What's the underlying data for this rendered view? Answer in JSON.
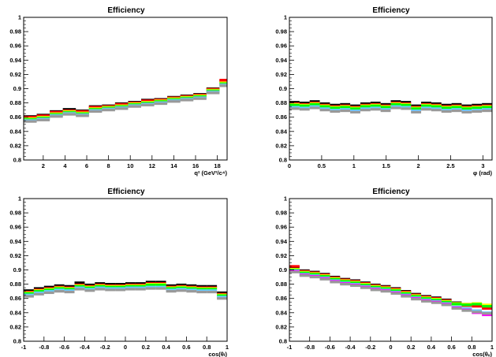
{
  "chart_data": [
    {
      "type": "line",
      "title": "Efficiency",
      "xlabel": "q² (GeV²/c⁴)",
      "ylabel": "",
      "xlim": [
        0.2,
        18.9
      ],
      "ylim": [
        0.8,
        1.0
      ],
      "x_ticks": [
        "2",
        "4",
        "6",
        "8",
        "10",
        "12",
        "14",
        "16",
        "18"
      ],
      "x_tick_values": [
        2,
        4,
        6,
        8,
        10,
        12,
        14,
        16,
        18
      ],
      "y_ticks": [
        "0.8",
        "0.82",
        "0.84",
        "0.86",
        "0.88",
        "0.9",
        "0.92",
        "0.94",
        "0.96",
        "0.98",
        "1"
      ],
      "grid": false,
      "bin_edges": [
        0.2,
        1.4,
        2.6,
        3.8,
        5.0,
        6.2,
        7.4,
        8.6,
        9.8,
        11.0,
        12.2,
        13.4,
        14.6,
        15.8,
        17.0,
        18.2,
        18.9
      ],
      "series": [
        {
          "color": "#000000",
          "values": [
            0.861,
            0.863,
            0.868,
            0.871,
            0.869,
            0.875,
            0.876,
            0.879,
            0.881,
            0.884,
            0.885,
            0.888,
            0.89,
            0.892,
            0.9,
            0.911
          ]
        },
        {
          "color": "#ff9900",
          "values": [
            0.859,
            0.861,
            0.866,
            0.869,
            0.867,
            0.873,
            0.875,
            0.877,
            0.88,
            0.882,
            0.884,
            0.887,
            0.889,
            0.891,
            0.899,
            0.91
          ]
        },
        {
          "color": "#ff0000",
          "values": [
            0.86,
            0.862,
            0.867,
            0.869,
            0.868,
            0.874,
            0.875,
            0.878,
            0.88,
            0.883,
            0.884,
            0.887,
            0.889,
            0.891,
            0.899,
            0.912
          ]
        },
        {
          "color": "#ffff00",
          "values": [
            0.858,
            0.86,
            0.865,
            0.868,
            0.866,
            0.872,
            0.874,
            0.876,
            0.879,
            0.881,
            0.883,
            0.886,
            0.888,
            0.89,
            0.898,
            0.908
          ]
        },
        {
          "color": "#00ff00",
          "values": [
            0.857,
            0.859,
            0.864,
            0.867,
            0.865,
            0.871,
            0.873,
            0.875,
            0.878,
            0.88,
            0.882,
            0.885,
            0.887,
            0.889,
            0.897,
            0.907
          ]
        },
        {
          "color": "#66cc66",
          "values": [
            0.856,
            0.858,
            0.863,
            0.866,
            0.864,
            0.87,
            0.872,
            0.874,
            0.877,
            0.879,
            0.881,
            0.884,
            0.886,
            0.888,
            0.896,
            0.906
          ]
        },
        {
          "color": "#66ccff",
          "values": [
            0.855,
            0.857,
            0.862,
            0.865,
            0.863,
            0.869,
            0.871,
            0.873,
            0.876,
            0.878,
            0.88,
            0.883,
            0.885,
            0.887,
            0.895,
            0.905
          ]
        },
        {
          "color": "#999999",
          "values": [
            0.854,
            0.856,
            0.861,
            0.864,
            0.862,
            0.868,
            0.87,
            0.872,
            0.875,
            0.877,
            0.879,
            0.882,
            0.884,
            0.886,
            0.894,
            0.904
          ]
        }
      ]
    },
    {
      "type": "line",
      "title": "Efficiency",
      "xlabel": "φ (rad)",
      "ylabel": "",
      "xlim": [
        0,
        3.1416
      ],
      "ylim": [
        0.8,
        1.0
      ],
      "x_ticks": [
        "0",
        "0.5",
        "1",
        "1.5",
        "2",
        "2.5",
        "3"
      ],
      "x_tick_values": [
        0,
        0.5,
        1,
        1.5,
        2,
        2.5,
        3
      ],
      "y_ticks": [
        "0.8",
        "0.82",
        "0.84",
        "0.86",
        "0.88",
        "0.9",
        "0.92",
        "0.94",
        "0.96",
        "0.98",
        "1"
      ],
      "grid": false,
      "bin_edges": [
        0,
        0.1571,
        0.3142,
        0.4712,
        0.6283,
        0.7854,
        0.9425,
        1.0996,
        1.2566,
        1.4137,
        1.5708,
        1.7279,
        1.885,
        2.042,
        2.1991,
        2.3562,
        2.5133,
        2.6704,
        2.8274,
        2.9845,
        3.1416
      ],
      "series": [
        {
          "color": "#000000",
          "values": [
            0.881,
            0.88,
            0.882,
            0.879,
            0.877,
            0.878,
            0.876,
            0.879,
            0.88,
            0.878,
            0.882,
            0.881,
            0.876,
            0.88,
            0.879,
            0.877,
            0.878,
            0.876,
            0.877,
            0.878
          ]
        },
        {
          "color": "#ff0000",
          "values": [
            0.879,
            0.878,
            0.88,
            0.877,
            0.875,
            0.876,
            0.874,
            0.877,
            0.878,
            0.876,
            0.88,
            0.879,
            0.874,
            0.878,
            0.877,
            0.875,
            0.876,
            0.874,
            0.875,
            0.876
          ]
        },
        {
          "color": "#ffff00",
          "values": [
            0.878,
            0.877,
            0.879,
            0.876,
            0.874,
            0.875,
            0.873,
            0.876,
            0.877,
            0.875,
            0.879,
            0.878,
            0.873,
            0.877,
            0.876,
            0.874,
            0.875,
            0.873,
            0.874,
            0.875
          ]
        },
        {
          "color": "#00ff00",
          "values": [
            0.877,
            0.876,
            0.878,
            0.875,
            0.873,
            0.874,
            0.872,
            0.875,
            0.876,
            0.874,
            0.878,
            0.877,
            0.872,
            0.876,
            0.875,
            0.873,
            0.874,
            0.872,
            0.873,
            0.874
          ]
        },
        {
          "color": "#66ccff",
          "values": [
            0.874,
            0.873,
            0.875,
            0.872,
            0.87,
            0.871,
            0.869,
            0.872,
            0.873,
            0.871,
            0.875,
            0.874,
            0.869,
            0.873,
            0.872,
            0.87,
            0.871,
            0.869,
            0.87,
            0.871
          ]
        },
        {
          "color": "#999999",
          "values": [
            0.872,
            0.871,
            0.873,
            0.87,
            0.868,
            0.869,
            0.867,
            0.87,
            0.871,
            0.869,
            0.873,
            0.872,
            0.867,
            0.871,
            0.87,
            0.868,
            0.869,
            0.867,
            0.868,
            0.869
          ]
        }
      ]
    },
    {
      "type": "line",
      "title": "Efficiency",
      "xlabel": "cos(θₗ)",
      "ylabel": "",
      "xlim": [
        -1,
        1
      ],
      "ylim": [
        0.8,
        1.0
      ],
      "x_ticks": [
        "-1",
        "-0.8",
        "-0.6",
        "-0.4",
        "-0.2",
        "0",
        "0.2",
        "0.4",
        "0.6",
        "0.8",
        "1"
      ],
      "x_tick_values": [
        -1,
        -0.8,
        -0.6,
        -0.4,
        -0.2,
        0,
        0.2,
        0.4,
        0.6,
        0.8,
        1
      ],
      "y_ticks": [
        "0.8",
        "0.82",
        "0.84",
        "0.86",
        "0.88",
        "0.9",
        "0.92",
        "0.94",
        "0.96",
        "0.98",
        "1"
      ],
      "grid": false,
      "bin_edges": [
        -1,
        -0.9,
        -0.8,
        -0.7,
        -0.6,
        -0.5,
        -0.4,
        -0.3,
        -0.2,
        -0.1,
        0,
        0.1,
        0.2,
        0.3,
        0.4,
        0.5,
        0.6,
        0.7,
        0.8,
        0.9,
        1
      ],
      "series": [
        {
          "color": "#000000",
          "values": [
            0.871,
            0.874,
            0.876,
            0.878,
            0.877,
            0.882,
            0.879,
            0.881,
            0.88,
            0.88,
            0.881,
            0.881,
            0.883,
            0.883,
            0.878,
            0.879,
            0.878,
            0.877,
            0.877,
            0.868
          ]
        },
        {
          "color": "#ff0000",
          "values": [
            0.869,
            0.872,
            0.874,
            0.876,
            0.875,
            0.879,
            0.877,
            0.879,
            0.878,
            0.878,
            0.879,
            0.879,
            0.881,
            0.881,
            0.876,
            0.877,
            0.876,
            0.875,
            0.875,
            0.866
          ]
        },
        {
          "color": "#ffff00",
          "values": [
            0.868,
            0.871,
            0.873,
            0.875,
            0.874,
            0.878,
            0.876,
            0.878,
            0.877,
            0.877,
            0.878,
            0.878,
            0.88,
            0.88,
            0.875,
            0.876,
            0.875,
            0.874,
            0.874,
            0.865
          ]
        },
        {
          "color": "#00ff00",
          "values": [
            0.867,
            0.87,
            0.872,
            0.874,
            0.873,
            0.877,
            0.875,
            0.877,
            0.876,
            0.876,
            0.877,
            0.877,
            0.879,
            0.879,
            0.874,
            0.875,
            0.874,
            0.873,
            0.873,
            0.864
          ]
        },
        {
          "color": "#66ccff",
          "values": [
            0.865,
            0.868,
            0.87,
            0.872,
            0.871,
            0.875,
            0.873,
            0.875,
            0.874,
            0.874,
            0.875,
            0.875,
            0.876,
            0.876,
            0.872,
            0.873,
            0.872,
            0.871,
            0.871,
            0.862
          ]
        },
        {
          "color": "#999999",
          "values": [
            0.863,
            0.866,
            0.868,
            0.87,
            0.869,
            0.873,
            0.871,
            0.873,
            0.872,
            0.872,
            0.873,
            0.873,
            0.874,
            0.874,
            0.87,
            0.871,
            0.87,
            0.869,
            0.869,
            0.86
          ]
        }
      ]
    },
    {
      "type": "line",
      "title": "Efficiency",
      "xlabel": "cos(θᵥ)",
      "ylabel": "",
      "xlim": [
        -1,
        1
      ],
      "ylim": [
        0.8,
        1.0
      ],
      "x_ticks": [
        "-1",
        "-0.8",
        "-0.6",
        "-0.4",
        "-0.2",
        "0",
        "0.2",
        "0.4",
        "0.6",
        "0.8",
        "1"
      ],
      "x_tick_values": [
        -1,
        -0.8,
        -0.6,
        -0.4,
        -0.2,
        0,
        0.2,
        0.4,
        0.6,
        0.8,
        1
      ],
      "y_ticks": [
        "0.8",
        "0.82",
        "0.84",
        "0.86",
        "0.88",
        "0.9",
        "0.92",
        "0.94",
        "0.96",
        "0.98",
        "1"
      ],
      "grid": false,
      "bin_edges": [
        -1,
        -0.9,
        -0.8,
        -0.7,
        -0.6,
        -0.5,
        -0.4,
        -0.3,
        -0.2,
        -0.1,
        0,
        0.1,
        0.2,
        0.3,
        0.4,
        0.5,
        0.6,
        0.7,
        0.8,
        0.9,
        1
      ],
      "series": [
        {
          "color": "#000000",
          "values": [
            0.904,
            0.899,
            0.897,
            0.894,
            0.89,
            0.887,
            0.885,
            0.882,
            0.879,
            0.877,
            0.874,
            0.87,
            0.866,
            0.863,
            0.861,
            0.858,
            0.854,
            0.852,
            0.852,
            0.849
          ]
        },
        {
          "color": "#ff0000",
          "values": [
            0.905,
            0.898,
            0.896,
            0.893,
            0.889,
            0.886,
            0.884,
            0.881,
            0.878,
            0.876,
            0.873,
            0.869,
            0.865,
            0.862,
            0.86,
            0.857,
            0.852,
            0.85,
            0.849,
            0.846
          ]
        },
        {
          "color": "#ffff00",
          "values": [
            0.901,
            0.897,
            0.895,
            0.892,
            0.888,
            0.885,
            0.883,
            0.88,
            0.877,
            0.875,
            0.872,
            0.868,
            0.864,
            0.861,
            0.859,
            0.856,
            0.853,
            0.852,
            0.853,
            0.851
          ]
        },
        {
          "color": "#00ff00",
          "values": [
            0.9,
            0.896,
            0.894,
            0.891,
            0.887,
            0.884,
            0.882,
            0.879,
            0.876,
            0.874,
            0.871,
            0.867,
            0.863,
            0.86,
            0.858,
            0.855,
            0.852,
            0.851,
            0.852,
            0.849
          ]
        },
        {
          "color": "#66ccff",
          "values": [
            0.899,
            0.894,
            0.892,
            0.889,
            0.885,
            0.882,
            0.88,
            0.877,
            0.874,
            0.872,
            0.869,
            0.865,
            0.861,
            0.858,
            0.856,
            0.853,
            0.848,
            0.846,
            0.843,
            0.84
          ]
        },
        {
          "color": "#ff00ff",
          "values": [
            0.898,
            0.893,
            0.891,
            0.888,
            0.884,
            0.881,
            0.879,
            0.876,
            0.873,
            0.871,
            0.868,
            0.864,
            0.86,
            0.857,
            0.855,
            0.852,
            0.847,
            0.844,
            0.84,
            0.837
          ]
        },
        {
          "color": "#999999",
          "values": [
            0.897,
            0.892,
            0.89,
            0.887,
            0.883,
            0.88,
            0.878,
            0.875,
            0.872,
            0.87,
            0.867,
            0.863,
            0.859,
            0.856,
            0.854,
            0.851,
            0.846,
            0.843,
            0.841,
            0.839
          ]
        }
      ]
    }
  ]
}
